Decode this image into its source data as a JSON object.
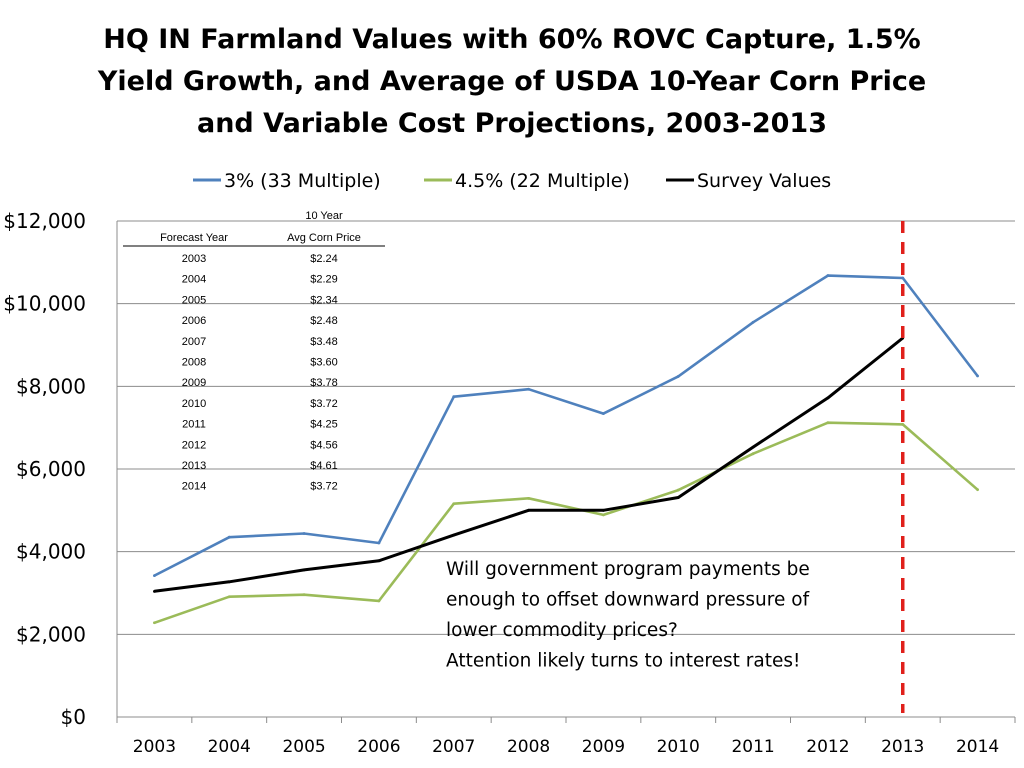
{
  "chart_data": {
    "type": "line",
    "title_lines": [
      "HQ IN Farmland Values with 60% ROVC Capture, 1.5%",
      "Yield Growth, and Average of USDA 10-Year Corn Price",
      "and Variable Cost Projections, 2003-2013"
    ],
    "xlabel": "",
    "ylabel": "",
    "ylim": [
      0,
      12000
    ],
    "yticks": [
      {
        "value": 0,
        "label": "$0"
      },
      {
        "value": 2000,
        "label": "$2,000"
      },
      {
        "value": 4000,
        "label": "$4,000"
      },
      {
        "value": 6000,
        "label": "$6,000"
      },
      {
        "value": 8000,
        "label": "$8,000"
      },
      {
        "value": 10000,
        "label": "$10,000"
      },
      {
        "value": 12000,
        "label": "$12,000"
      }
    ],
    "grid": "horizontal",
    "legend_position": "top",
    "categories": [
      "2003",
      "2004",
      "2005",
      "2006",
      "2007",
      "2008",
      "2009",
      "2010",
      "2011",
      "2012",
      "2013",
      "2014"
    ],
    "series": [
      {
        "name": "3% (33 Multiple)",
        "color": "#4f81bd",
        "values": [
          3420,
          4350,
          4440,
          4210,
          7750,
          7930,
          7340,
          8240,
          9550,
          10680,
          10620,
          8250
        ]
      },
      {
        "name": "4.5% (22 Multiple)",
        "color": "#9bbb59",
        "values": [
          2280,
          2910,
          2960,
          2810,
          5160,
          5290,
          4890,
          5490,
          6370,
          7120,
          7080,
          5500
        ]
      },
      {
        "name": "Survey Values",
        "color": "#000000",
        "values": [
          3040,
          3270,
          3560,
          3780,
          4400,
          5000,
          5000,
          5310,
          6530,
          7720,
          9170,
          null
        ]
      }
    ],
    "reference_line": {
      "category": "2013",
      "color": "#e0201b",
      "style": "dashed"
    },
    "inset_table": {
      "header_left": "Forecast Year",
      "header_right_line1": "10 Year",
      "header_right_line2": "Avg Corn Price",
      "rows": [
        {
          "year": "2003",
          "price": "$2.24"
        },
        {
          "year": "2004",
          "price": "$2.29"
        },
        {
          "year": "2005",
          "price": "$2.34"
        },
        {
          "year": "2006",
          "price": "$2.48"
        },
        {
          "year": "2007",
          "price": "$3.48"
        },
        {
          "year": "2008",
          "price": "$3.60"
        },
        {
          "year": "2009",
          "price": "$3.78"
        },
        {
          "year": "2010",
          "price": "$3.72"
        },
        {
          "year": "2011",
          "price": "$4.25"
        },
        {
          "year": "2012",
          "price": "$4.56"
        },
        {
          "year": "2013",
          "price": "$4.61"
        },
        {
          "year": "2014",
          "price": "$3.72"
        }
      ]
    },
    "annotation_lines": [
      "Will government program payments be",
      "enough to offset downward pressure of",
      "lower commodity prices?",
      "Attention likely turns to interest rates!"
    ]
  }
}
